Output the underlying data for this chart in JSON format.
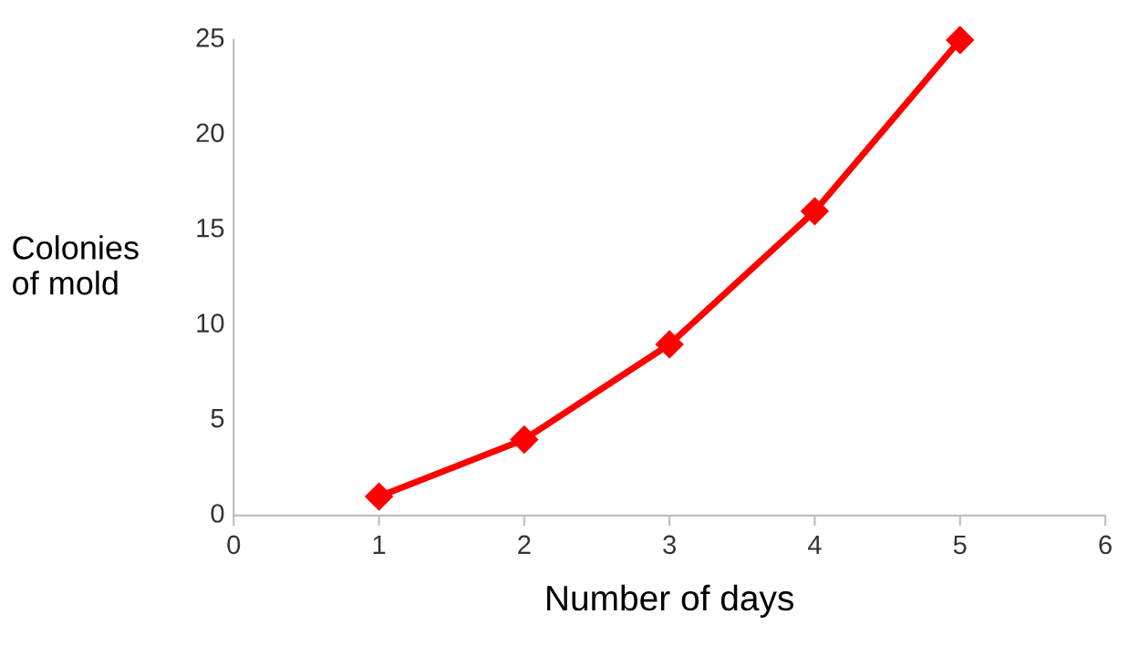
{
  "chart_data": {
    "type": "line",
    "xlabel": "Number of days",
    "ylabel": "Colonies\nof mold",
    "x": [
      1,
      2,
      3,
      4,
      5
    ],
    "series": [
      {
        "color": "#ff0000",
        "values": [
          1,
          4,
          9,
          16,
          25
        ]
      }
    ],
    "xlim": [
      0,
      6
    ],
    "xticks": [
      0,
      1,
      2,
      3,
      4,
      5,
      6
    ],
    "ylim": [
      0,
      25
    ],
    "yticks": [
      0,
      5,
      10,
      15,
      20,
      25
    ],
    "marker": "diamond",
    "line_style": "solid",
    "grid": false,
    "legend": false
  }
}
